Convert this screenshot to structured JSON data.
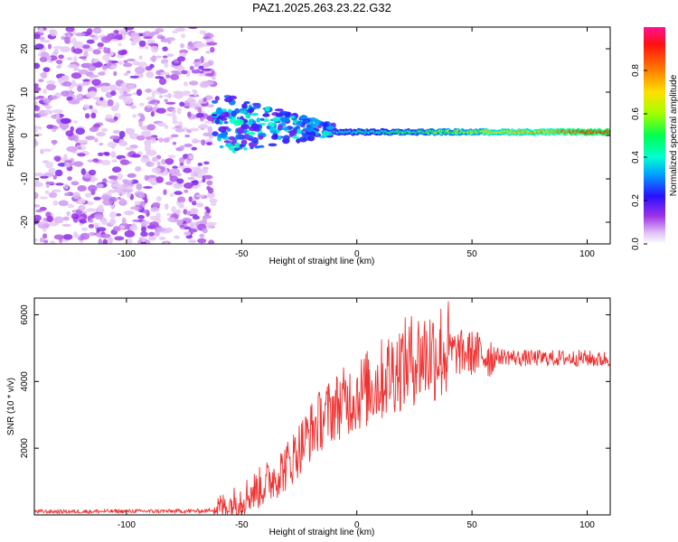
{
  "title": "PAZ1.2025.263.23.22.G32",
  "chart_data": [
    {
      "type": "heatmap",
      "xlabel": "Height of straight line (km)",
      "ylabel": "Frequency (Hz)",
      "xlim": [
        -140,
        110
      ],
      "ylim": [
        -25,
        25
      ],
      "xticks": [
        -100,
        -50,
        0,
        50,
        100
      ],
      "yticks": [
        -20,
        -10,
        0,
        10,
        20
      ],
      "colorbar": {
        "label": "Normalized spectral amplitude",
        "range": [
          0.0,
          1.0
        ],
        "ticks": [
          0.0,
          0.2,
          0.4,
          0.6,
          0.8
        ]
      },
      "description_regions": {
        "noise_region_km": [
          -140,
          -62
        ],
        "transition_region_km": [
          -62,
          -10
        ],
        "tone_region_km": [
          -10,
          110
        ],
        "tone_frequency_hz": 0.8
      }
    },
    {
      "type": "line",
      "xlabel": "Height of straight line (km)",
      "ylabel": "SNR (10 * v/v)",
      "xlim": [
        -140,
        110
      ],
      "ylim": [
        0,
        6500
      ],
      "xticks": [
        -100,
        -50,
        0,
        50,
        100
      ],
      "yticks": [
        2000,
        4000,
        6000
      ],
      "color": "#ee3333",
      "series": [
        {
          "name": "SNR",
          "x": [
            -140,
            -120,
            -100,
            -80,
            -65,
            -55,
            -50,
            -45,
            -40,
            -35,
            -30,
            -25,
            -20,
            -15,
            -10,
            -5,
            0,
            5,
            10,
            15,
            20,
            25,
            30,
            35,
            40,
            45,
            50,
            55,
            60,
            65,
            70,
            75,
            80,
            85,
            90,
            95,
            100,
            105,
            110
          ],
          "values": [
            100,
            100,
            110,
            110,
            120,
            300,
            500,
            700,
            900,
            1200,
            1500,
            2000,
            2500,
            2900,
            3200,
            3400,
            3600,
            3800,
            4000,
            4300,
            4500,
            4700,
            4800,
            4900,
            4900,
            4850,
            4850,
            4800,
            4750,
            4750,
            4700,
            4700,
            4700,
            4700,
            4700,
            4700,
            4700,
            4650,
            4700
          ]
        }
      ]
    }
  ]
}
